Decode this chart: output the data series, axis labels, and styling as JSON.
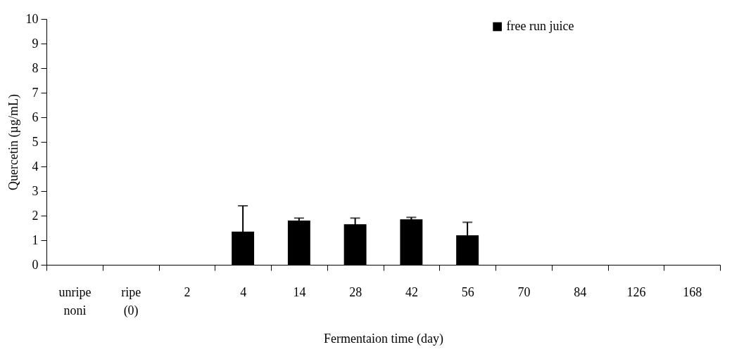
{
  "chart_data": {
    "type": "bar",
    "xlabel": "Fermentaion time (day)",
    "ylabel": "Quercetin (µg/mL)",
    "categories": [
      "unripe noni",
      "ripe (0)",
      "2",
      "4",
      "14",
      "28",
      "42",
      "56",
      "70",
      "84",
      "126",
      "168"
    ],
    "series": [
      {
        "name": "free run juice",
        "color": "#000000",
        "values": [
          null,
          null,
          null,
          1.35,
          1.8,
          1.65,
          1.85,
          1.2,
          null,
          null,
          null,
          null
        ],
        "errors": [
          null,
          null,
          null,
          1.05,
          0.1,
          0.25,
          0.08,
          0.53,
          null,
          null,
          null,
          null
        ]
      }
    ],
    "ylim": [
      0,
      10
    ],
    "yticks": [
      0,
      1,
      2,
      3,
      4,
      5,
      6,
      7,
      8,
      9,
      10
    ],
    "grid": false,
    "legend": "top right"
  }
}
